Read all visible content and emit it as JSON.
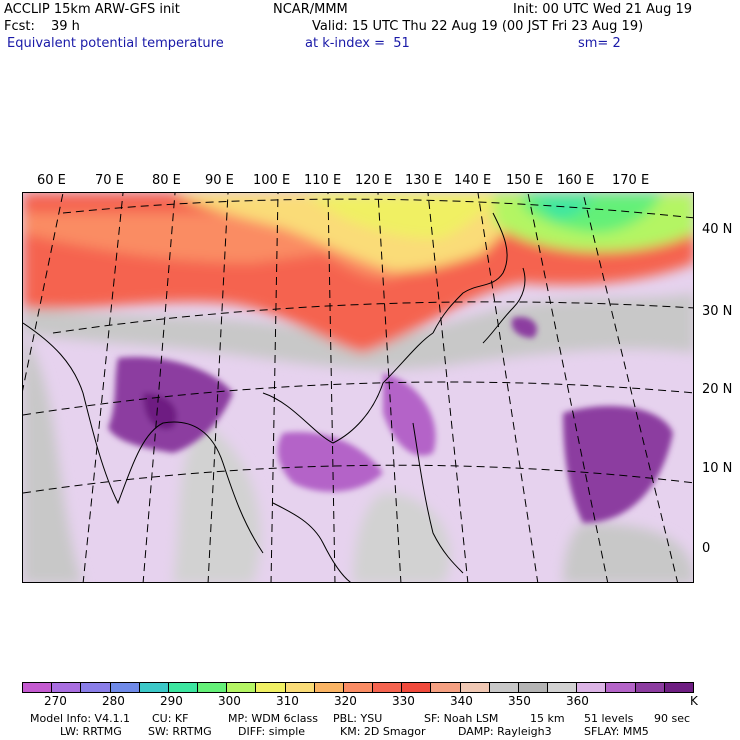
{
  "header": {
    "title": "ACCLIP 15km ARW-GFS init",
    "center": "NCAR/MMM",
    "init": "Init: 00 UTC Wed 21 Aug 19",
    "fcst_label": "Fcst:",
    "fcst_value": "39 h",
    "valid": "Valid: 15 UTC Thu 22 Aug 19 (00 JST Fri 23 Aug 19)",
    "field": "Equivalent potential temperature",
    "level": "at k-index =  51",
    "smoothing": "sm= 2"
  },
  "map": {
    "lon_labels": [
      "60 E",
      "70 E",
      "80 E",
      "90 E",
      "100 E",
      "110 E",
      "120 E",
      "130 E",
      "140 E",
      "150 E",
      "160 E",
      "170 E"
    ],
    "lat_labels": [
      "40 N",
      "30 N",
      "20 N",
      "10 N",
      "0"
    ]
  },
  "colorbar": {
    "colors": [
      "#c45ad0",
      "#a96ee0",
      "#8a7ee8",
      "#6f8ae8",
      "#3cc8c8",
      "#3ce6a0",
      "#64f078",
      "#b4f564",
      "#f0f064",
      "#fadc78",
      "#fab464",
      "#fa8c64",
      "#f56450",
      "#f04a3c",
      "#f5a082",
      "#f0c8b4",
      "#c8c8c8",
      "#b4b4b4",
      "#d2d2d2",
      "#dcb4e6",
      "#b464c8",
      "#8c3ca0",
      "#6e1e82"
    ],
    "tick_labels": [
      "270",
      "280",
      "290",
      "300",
      "310",
      "320",
      "330",
      "340",
      "350",
      "360"
    ],
    "unit": "K"
  },
  "footer": {
    "line1": [
      "Model Info: V4.1.1",
      "CU: KF",
      "MP: WDM 6class",
      "PBL: YSU",
      "SF: Noah LSM",
      "15 km",
      "51 levels",
      "90 sec"
    ],
    "line2": [
      "LW: RRTMG",
      "SW: RRTMG",
      "DIFF: simple",
      "KM: 2D Smagor",
      "DAMP: Rayleigh3",
      "SFLAY: MM5"
    ]
  }
}
